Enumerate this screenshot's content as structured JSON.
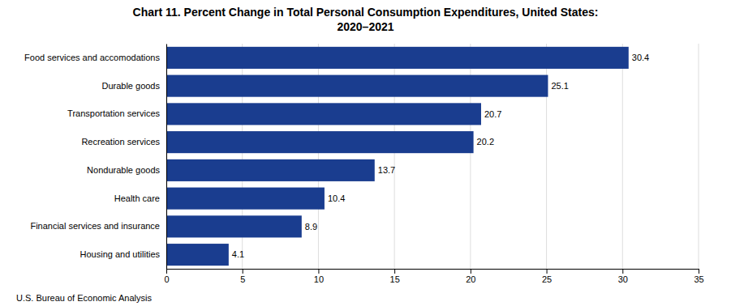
{
  "chart_data": {
    "type": "bar",
    "orientation": "horizontal",
    "title": "Chart 11. Percent Change in Total Personal Consumption Expenditures, United States:",
    "subtitle": "2020–2021",
    "categories": [
      "Food services and accomodations",
      "Durable goods",
      "Transportation services",
      "Recreation services",
      "Nondurable goods",
      "Health care",
      "Financial services and insurance",
      "Housing and utilities"
    ],
    "values": [
      30.4,
      25.1,
      20.7,
      20.2,
      13.7,
      10.4,
      8.9,
      4.1
    ],
    "color": "#1a3d8f",
    "xlim": [
      0,
      35
    ],
    "xticks": [
      0,
      5,
      10,
      15,
      20,
      25,
      30,
      35
    ],
    "grid": true,
    "data_labels": true,
    "annotations": [
      "U.S. Bureau of Economic Analysis"
    ]
  }
}
